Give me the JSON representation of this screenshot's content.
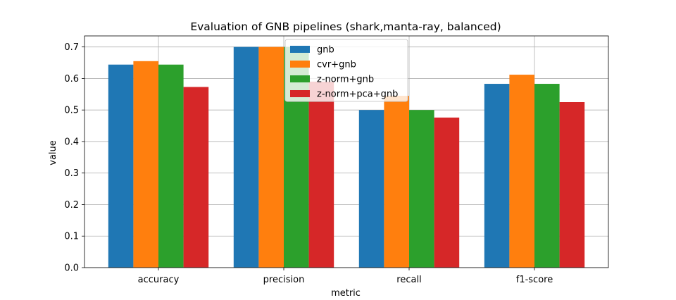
{
  "chart_data": {
    "type": "bar",
    "title": "Evaluation of GNB pipelines (shark,manta-ray, balanced)",
    "xlabel": "metric",
    "ylabel": "value",
    "categories": [
      "accuracy",
      "precision",
      "recall",
      "f1-score"
    ],
    "series": [
      {
        "name": "gnb",
        "color": "#1f77b4",
        "values": [
          0.644,
          0.7,
          0.5,
          0.583
        ]
      },
      {
        "name": "cvr+gnb",
        "color": "#ff7f0e",
        "values": [
          0.655,
          0.7,
          0.545,
          0.612
        ]
      },
      {
        "name": "z-norm+gnb",
        "color": "#2ca02c",
        "values": [
          0.644,
          0.7,
          0.5,
          0.583
        ]
      },
      {
        "name": "z-norm+pca+gnb",
        "color": "#d62728",
        "values": [
          0.573,
          0.59,
          0.476,
          0.525
        ]
      }
    ],
    "ylim": [
      0,
      0.735
    ],
    "yticks": [
      "0.0",
      "0.1",
      "0.2",
      "0.3",
      "0.4",
      "0.5",
      "0.6",
      "0.7"
    ],
    "grid": true,
    "legend_position": "top-center"
  }
}
